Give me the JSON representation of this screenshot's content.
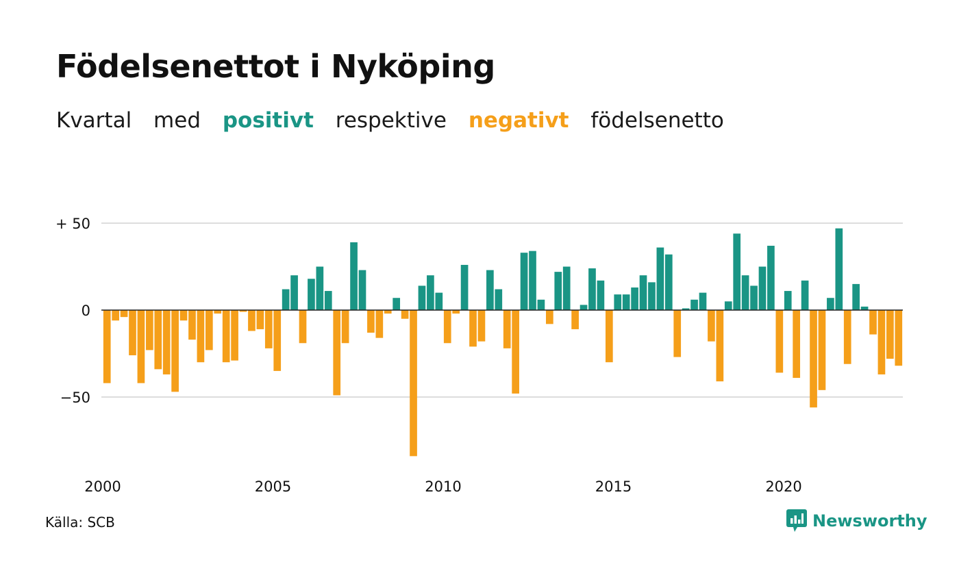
{
  "header": {
    "title": "Födelsenettot i Nyköping",
    "subtitle": {
      "w1": "Kvartal",
      "w2": "med",
      "positive": "positivt",
      "w3": "respektive",
      "negative": "negativt",
      "w4": "födelsenetto"
    }
  },
  "footer": {
    "source": "Källa: SCB",
    "brand": "Newsworthy"
  },
  "colors": {
    "positive": "#1a9585",
    "negative": "#f59f1a",
    "grid": "#dddddd",
    "zero_line": "#222222"
  },
  "chart_data": {
    "type": "bar",
    "ytick_labels": [
      "+ 50",
      "0",
      "−50"
    ],
    "yticks": [
      50,
      0,
      -50
    ],
    "ylim": [
      -85,
      50
    ],
    "x_start": 2000,
    "x_end_exclusive": 2023.5,
    "xtick_labels": [
      "2000",
      "2005",
      "2010",
      "2015",
      "2020"
    ],
    "xticks": [
      2000,
      2005,
      2010,
      2015,
      2020
    ],
    "grid": true,
    "legend": "none",
    "x": [
      "2000K1",
      "2000K2",
      "2000K3",
      "2000K4",
      "2001K1",
      "2001K2",
      "2001K3",
      "2001K4",
      "2002K1",
      "2002K2",
      "2002K3",
      "2002K4",
      "2003K1",
      "2003K2",
      "2003K3",
      "2003K4",
      "2004K1",
      "2004K2",
      "2004K3",
      "2004K4",
      "2005K1",
      "2005K2",
      "2005K3",
      "2005K4",
      "2006K1",
      "2006K2",
      "2006K3",
      "2006K4",
      "2007K1",
      "2007K2",
      "2007K3",
      "2007K4",
      "2008K1",
      "2008K2",
      "2008K3",
      "2008K4",
      "2009K1",
      "2009K2",
      "2009K3",
      "2009K4",
      "2010K1",
      "2010K2",
      "2010K3",
      "2010K4",
      "2011K1",
      "2011K2",
      "2011K3",
      "2011K4",
      "2012K1",
      "2012K2",
      "2012K3",
      "2012K4",
      "2013K1",
      "2013K2",
      "2013K3",
      "2013K4",
      "2014K1",
      "2014K2",
      "2014K3",
      "2014K4",
      "2015K1",
      "2015K2",
      "2015K3",
      "2015K4",
      "2016K1",
      "2016K2",
      "2016K3",
      "2016K4",
      "2017K1",
      "2017K2",
      "2017K3",
      "2017K4",
      "2018K1",
      "2018K2",
      "2018K3",
      "2018K4",
      "2019K1",
      "2019K2",
      "2019K3",
      "2019K4",
      "2020K1",
      "2020K2",
      "2020K3",
      "2020K4",
      "2021K1",
      "2021K2",
      "2021K3",
      "2021K4",
      "2022K1",
      "2022K2",
      "2022K3",
      "2022K4",
      "2023K1",
      "2023K2"
    ],
    "values": [
      -42,
      -6,
      -4,
      -26,
      -42,
      -23,
      -34,
      -37,
      -47,
      -6,
      -17,
      -30,
      -23,
      -2,
      -30,
      -29,
      -1,
      -12,
      -11,
      -22,
      -35,
      12,
      20,
      -19,
      18,
      25,
      11,
      -49,
      -19,
      39,
      23,
      -13,
      -16,
      -2,
      7,
      -5,
      -84,
      14,
      20,
      10,
      -19,
      -2,
      26,
      -21,
      -18,
      23,
      12,
      -22,
      -48,
      33,
      34,
      6,
      -8,
      22,
      25,
      -11,
      3,
      24,
      17,
      -30,
      9,
      9,
      13,
      20,
      16,
      36,
      32,
      -27,
      1,
      6,
      10,
      -18,
      -41,
      5,
      44,
      20,
      14,
      25,
      37,
      -36,
      11,
      -39,
      17,
      -56,
      -46,
      7,
      47,
      -31,
      15,
      2,
      -14,
      -37,
      -28,
      -32
    ]
  }
}
